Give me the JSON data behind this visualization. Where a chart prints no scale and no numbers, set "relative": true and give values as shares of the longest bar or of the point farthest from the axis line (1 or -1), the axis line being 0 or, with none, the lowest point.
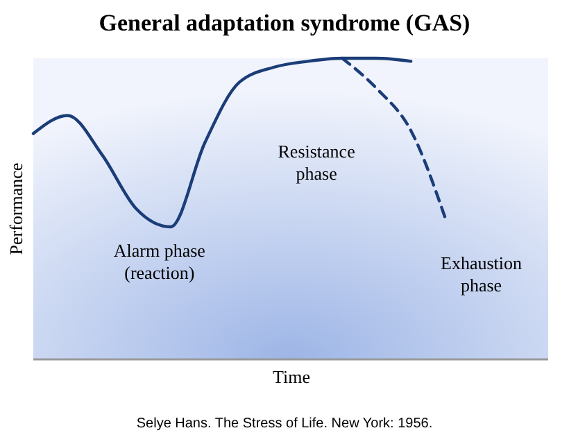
{
  "chart_data": {
    "type": "line",
    "title": "General adaptation syndrome (GAS)",
    "xlabel": "Time",
    "ylabel": "Performance",
    "relative": true,
    "categories": [
      null,
      null,
      null,
      null,
      null,
      null,
      null,
      null,
      null,
      null,
      null,
      null,
      null,
      null,
      null,
      null
    ],
    "series": [
      {
        "color": "#1b3d78",
        "line_style": "solid",
        "values": [
          0.75,
          0.81,
          0.68,
          0.5,
          0.44,
          0.72,
          0.92,
          0.97,
          0.99,
          1.0,
          1.0,
          0.99,
          null,
          null,
          null,
          null
        ]
      },
      {
        "color": "#1b3d78",
        "line_style": "dashed",
        "values": [
          null,
          null,
          null,
          null,
          null,
          null,
          null,
          null,
          null,
          1.0,
          0.9,
          0.76,
          0.47,
          null,
          null,
          null
        ]
      }
    ],
    "marker": "none",
    "annotations": [
      "Alarm phase\n(reaction)",
      "Resistance\nphase",
      "Exhaustion\nphase",
      "Selye Hans. The Stress of Life. New York: 1956."
    ]
  }
}
